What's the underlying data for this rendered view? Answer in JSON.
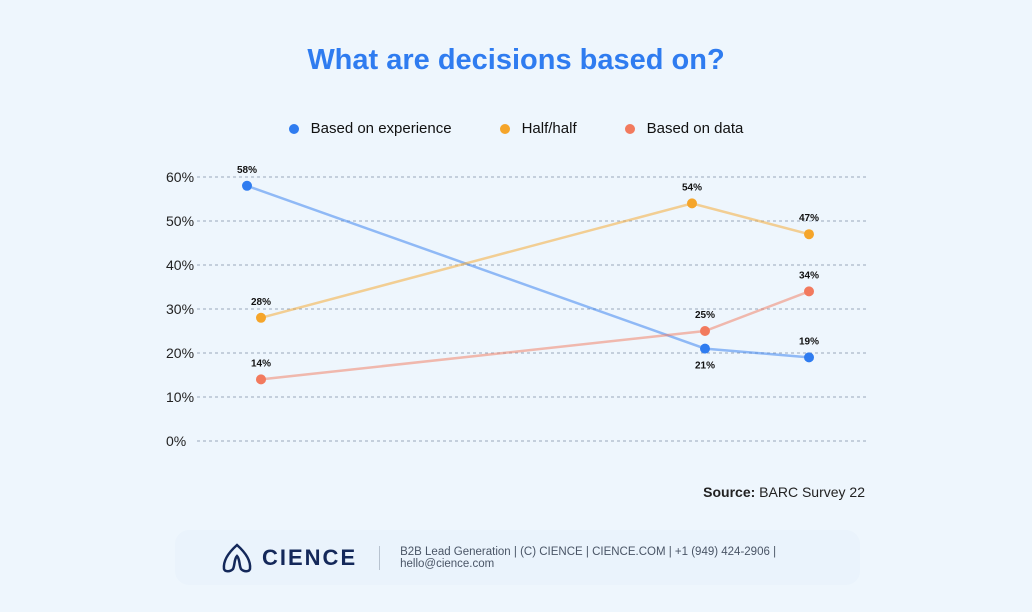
{
  "chart_data": {
    "type": "line",
    "title": "What are decisions based on?",
    "ylim": [
      0,
      60
    ],
    "yticks": [
      "0%",
      "10%",
      "20%",
      "30%",
      "40%",
      "50%",
      "60%"
    ],
    "grid": true,
    "legend_position": "top",
    "series": [
      {
        "name": "Based on experience",
        "color": "#2f7cf0",
        "values": [
          58,
          21,
          19
        ],
        "labels": [
          "58%",
          "21%",
          "19%"
        ]
      },
      {
        "name": "Half/half",
        "color": "#f5a52a",
        "values": [
          28,
          54,
          47
        ],
        "labels": [
          "28%",
          "54%",
          "47%"
        ]
      },
      {
        "name": "Based on data",
        "color": "#f27a5e",
        "values": [
          14,
          25,
          34
        ],
        "labels": [
          "14%",
          "25%",
          "34%"
        ]
      }
    ]
  },
  "source": {
    "label": "Source:",
    "text": "BARC Survey 22"
  },
  "footer": {
    "logo_text": "CIENCE",
    "text": "B2B Lead Generation | (C) CIENCE | CIENCE.COM | +1 (949) 424-2906 | hello@cience.com"
  }
}
